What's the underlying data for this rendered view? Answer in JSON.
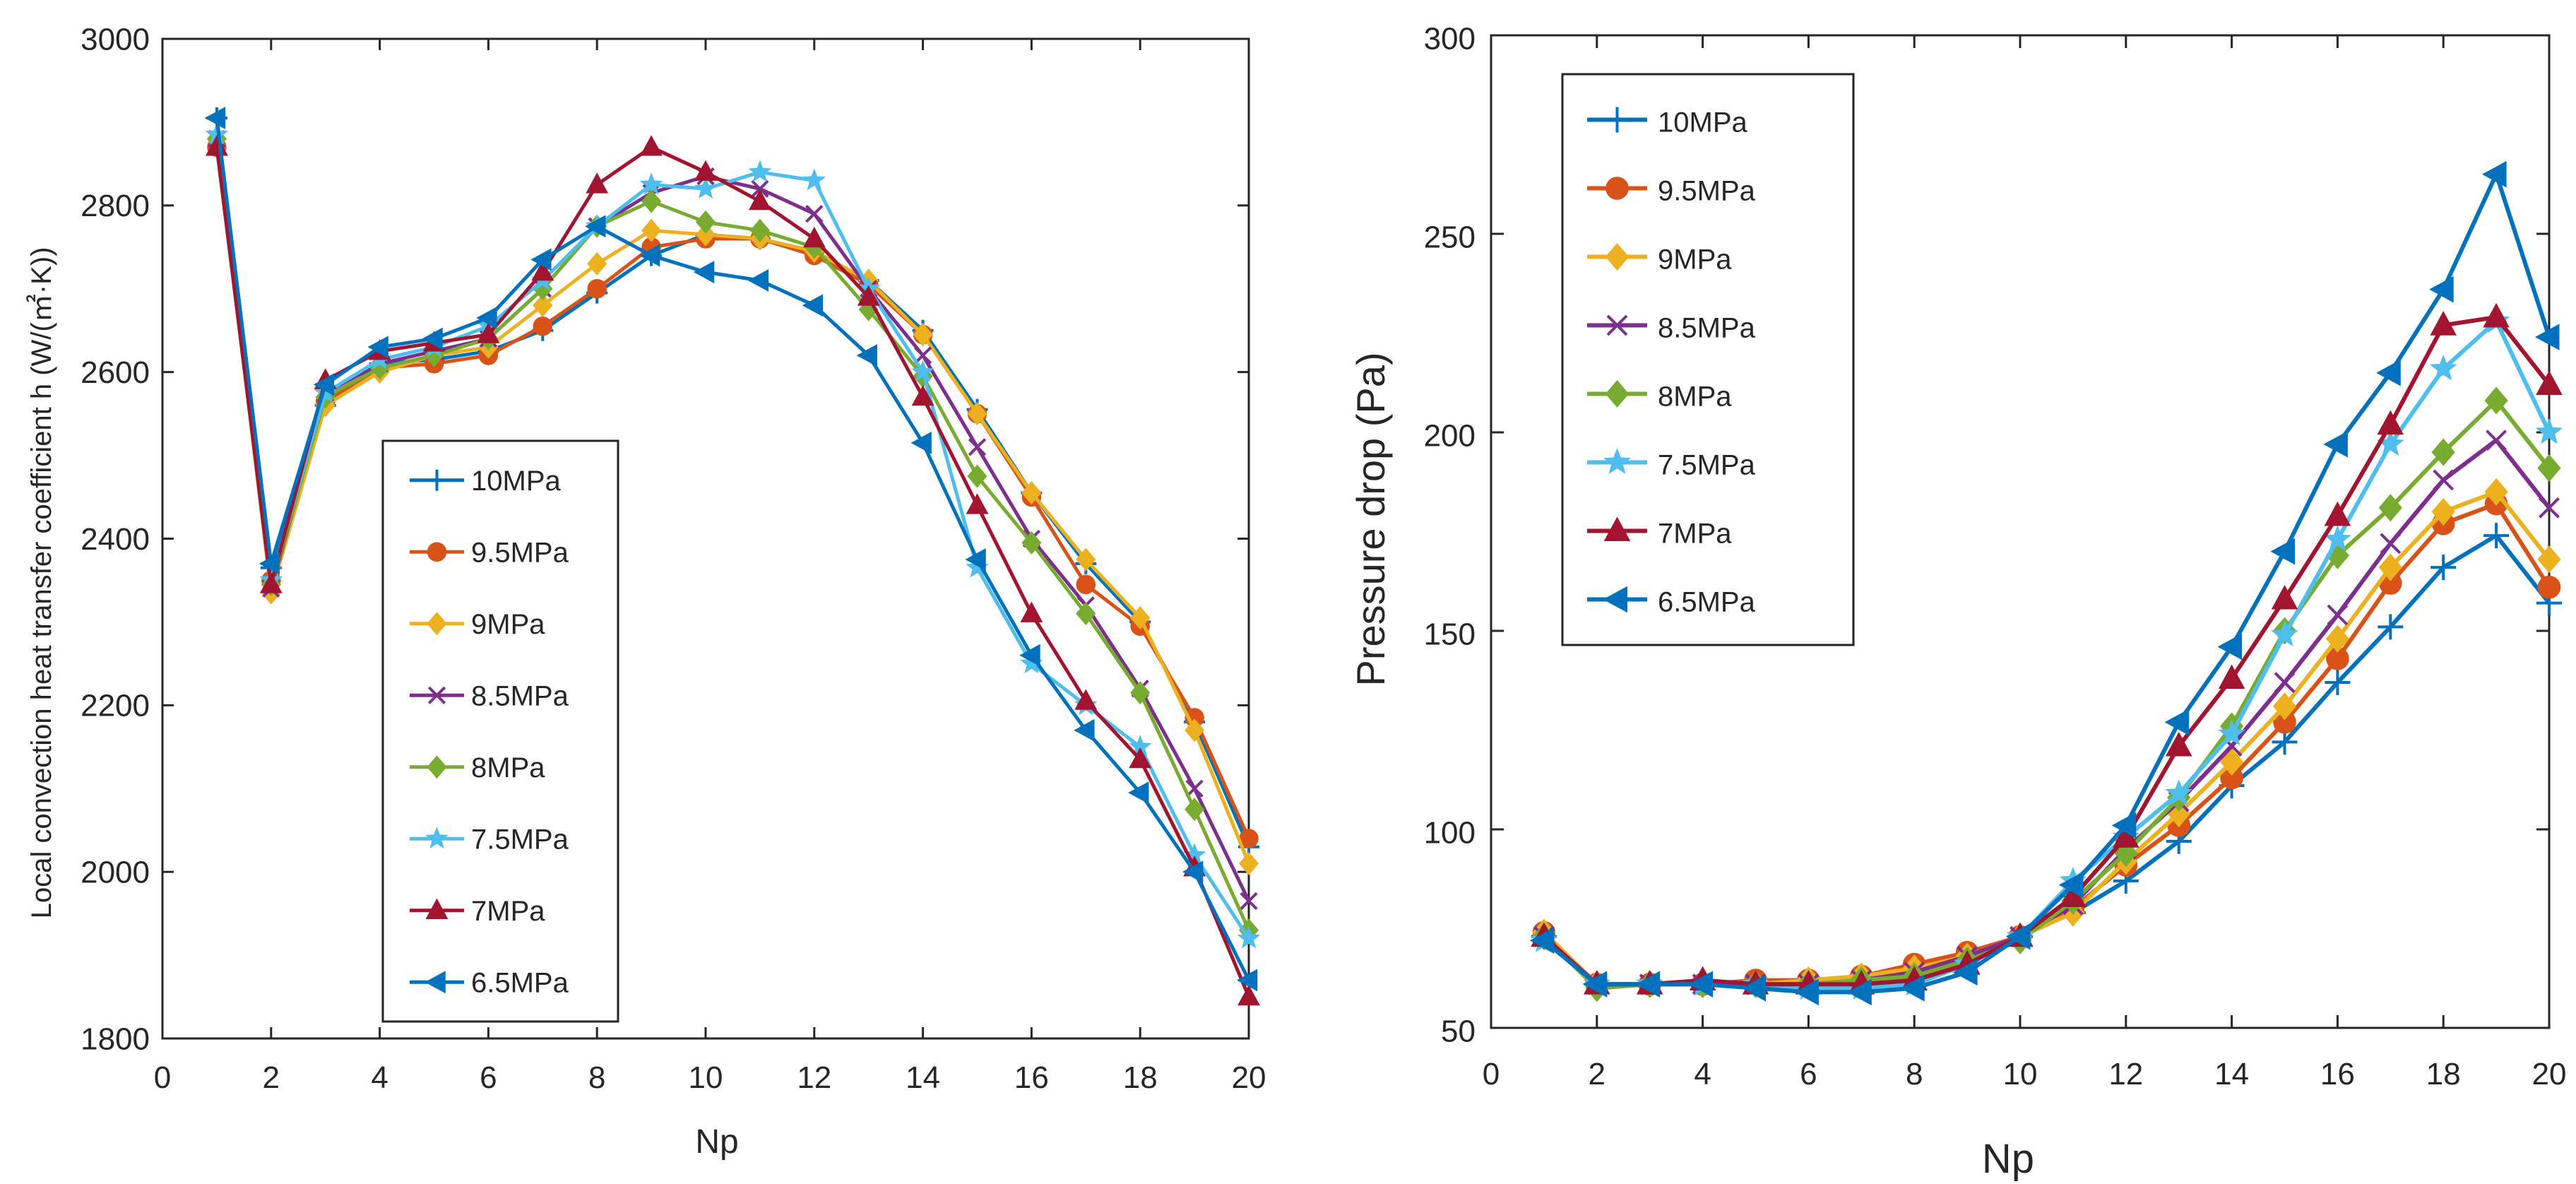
{
  "colors": {
    "10MPa": "#0072BD",
    "9.5MPa": "#D95319",
    "9MPa": "#EDB120",
    "8.5MPa": "#7E2F8E",
    "8MPa": "#77AC30",
    "7.5MPa": "#4DBEEE",
    "7MPa": "#A2142F",
    "6.5MPa": "#0072BD"
  },
  "chart_data": [
    {
      "type": "line",
      "title": "",
      "xlabel": "Np",
      "ylabel": "Local convection heat transfer coefficient  h (W/(㎡·K))",
      "xlim": [
        0,
        20
      ],
      "ylim": [
        1800,
        3000
      ],
      "xticks": [
        0,
        2,
        4,
        6,
        8,
        10,
        12,
        14,
        16,
        18,
        20
      ],
      "yticks": [
        1800,
        2000,
        2200,
        2400,
        2600,
        2800,
        3000
      ],
      "grid": false,
      "legend": "center-left",
      "x": [
        1,
        2,
        3,
        4,
        5,
        6,
        7,
        8,
        9,
        10,
        11,
        12,
        13,
        14,
        15,
        16,
        17,
        18,
        19,
        20
      ],
      "series": [
        {
          "name": "10MPa",
          "marker": "plus",
          "values": [
            2905,
            2365,
            2560,
            2610,
            2615,
            2625,
            2650,
            2695,
            2740,
            2765,
            2760,
            2745,
            2710,
            2650,
            2555,
            2455,
            2370,
            2300,
            2180,
            2030
          ]
        },
        {
          "name": "9.5MPa",
          "marker": "circle",
          "values": [
            2870,
            2350,
            2565,
            2605,
            2610,
            2620,
            2655,
            2700,
            2750,
            2760,
            2760,
            2740,
            2705,
            2645,
            2550,
            2450,
            2345,
            2295,
            2185,
            2040
          ]
        },
        {
          "name": "9MPa",
          "marker": "diamond",
          "values": [
            2880,
            2335,
            2560,
            2600,
            2620,
            2630,
            2680,
            2730,
            2770,
            2765,
            2760,
            2745,
            2710,
            2645,
            2550,
            2455,
            2375,
            2305,
            2170,
            2010
          ]
        },
        {
          "name": "8.5MPa",
          "marker": "x",
          "values": [
            2880,
            2340,
            2575,
            2610,
            2625,
            2640,
            2700,
            2775,
            2815,
            2835,
            2820,
            2790,
            2700,
            2620,
            2510,
            2400,
            2320,
            2220,
            2100,
            1965
          ]
        },
        {
          "name": "8MPa",
          "marker": "diamond",
          "values": [
            2880,
            2345,
            2570,
            2605,
            2620,
            2640,
            2700,
            2775,
            2805,
            2780,
            2770,
            2750,
            2675,
            2595,
            2475,
            2395,
            2310,
            2215,
            2075,
            1930
          ]
        },
        {
          "name": "7.5MPa",
          "marker": "star",
          "values": [
            2885,
            2350,
            2575,
            2615,
            2630,
            2655,
            2710,
            2775,
            2825,
            2820,
            2840,
            2830,
            2700,
            2600,
            2365,
            2250,
            2200,
            2150,
            2020,
            1920
          ]
        },
        {
          "name": "7MPa",
          "marker": "triangle-up",
          "values": [
            2870,
            2345,
            2590,
            2625,
            2635,
            2645,
            2720,
            2825,
            2870,
            2840,
            2805,
            2760,
            2690,
            2570,
            2440,
            2310,
            2205,
            2135,
            2005,
            1850
          ]
        },
        {
          "name": "6.5MPa",
          "marker": "triangle-left",
          "values": [
            2905,
            2370,
            2585,
            2630,
            2640,
            2665,
            2735,
            2775,
            2740,
            2720,
            2710,
            2680,
            2620,
            2515,
            2375,
            2260,
            2170,
            2095,
            2000,
            1870
          ]
        }
      ]
    },
    {
      "type": "line",
      "title": "",
      "xlabel": "Np",
      "ylabel": "Pressure drop (Pa)",
      "xlim": [
        0,
        20
      ],
      "ylim": [
        50,
        300
      ],
      "xticks": [
        0,
        2,
        4,
        6,
        8,
        10,
        12,
        14,
        16,
        18,
        20
      ],
      "yticks": [
        50,
        100,
        150,
        200,
        250,
        300
      ],
      "grid": false,
      "legend": "top-left",
      "x": [
        1,
        2,
        3,
        4,
        5,
        6,
        7,
        8,
        9,
        10,
        11,
        12,
        13,
        14,
        15,
        16,
        17,
        18,
        19,
        20
      ],
      "series": [
        {
          "name": "10MPa",
          "marker": "plus",
          "values": [
            73,
            61,
            61,
            61,
            61,
            61,
            61,
            62,
            66,
            73,
            79,
            87,
            97,
            111,
            122,
            137,
            151,
            166,
            174,
            157
          ]
        },
        {
          "name": "9.5MPa",
          "marker": "circle",
          "values": [
            74,
            61,
            61,
            61,
            62,
            62,
            63,
            66,
            69,
            73,
            80,
            91,
            101,
            113,
            127,
            143,
            162,
            177,
            182,
            161
          ]
        },
        {
          "name": "9MPa",
          "marker": "diamond",
          "values": [
            74,
            61,
            61,
            61,
            61,
            62,
            63,
            65,
            68,
            73,
            79,
            92,
            104,
            117,
            131,
            148,
            166,
            180,
            185,
            168
          ]
        },
        {
          "name": "8.5MPa",
          "marker": "x",
          "values": [
            73,
            61,
            61,
            61,
            61,
            61,
            62,
            64,
            68,
            73,
            81,
            95,
            107,
            121,
            137,
            154,
            172,
            188,
            198,
            181
          ]
        },
        {
          "name": "8MPa",
          "marker": "diamond",
          "values": [
            73,
            60,
            61,
            61,
            61,
            61,
            62,
            63,
            67,
            72,
            82,
            94,
            108,
            126,
            150,
            169,
            181,
            195,
            208,
            191
          ]
        },
        {
          "name": "7.5MPa",
          "marker": "star",
          "values": [
            72,
            61,
            61,
            61,
            61,
            60,
            60,
            61,
            66,
            73,
            87,
            98,
            109,
            124,
            149,
            173,
            197,
            216,
            228,
            200
          ]
        },
        {
          "name": "7MPa",
          "marker": "triangle-up",
          "values": [
            73,
            61,
            61,
            62,
            61,
            61,
            61,
            62,
            66,
            73,
            83,
            98,
            121,
            138,
            158,
            179,
            202,
            227,
            229,
            212
          ]
        },
        {
          "name": "6.5MPa",
          "marker": "triangle-left",
          "values": [
            72,
            61,
            61,
            61,
            60,
            59,
            59,
            60,
            64,
            73,
            86,
            101,
            127,
            146,
            170,
            197,
            215,
            236,
            265,
            224
          ]
        }
      ]
    }
  ]
}
